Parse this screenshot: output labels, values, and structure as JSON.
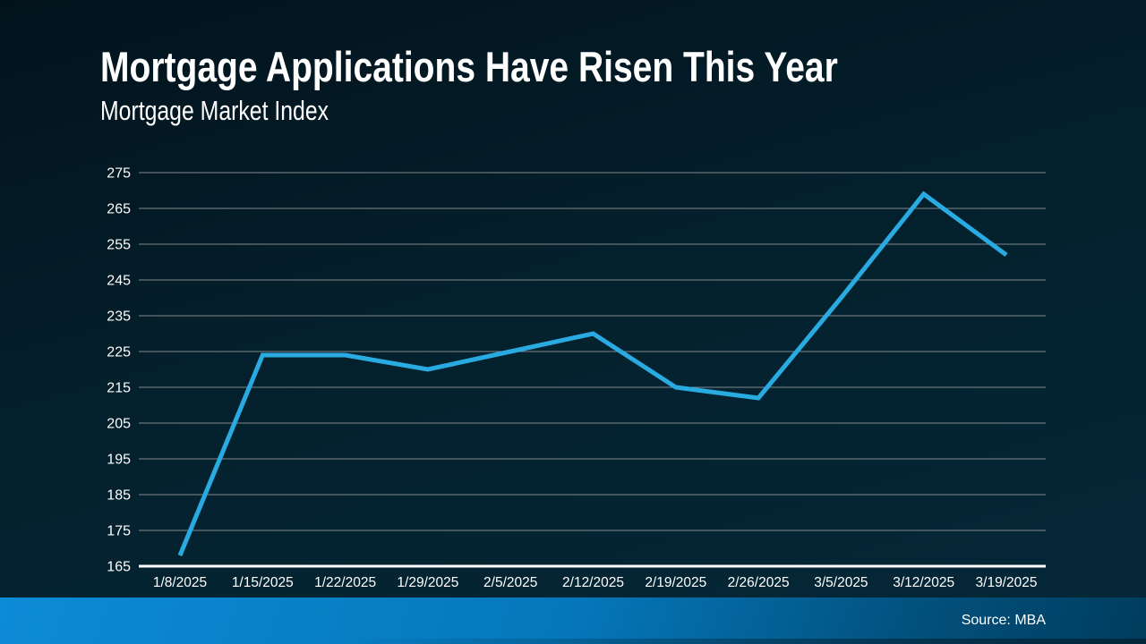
{
  "slide": {
    "title": "Mortgage Applications Have Risen This Year",
    "subtitle": "Mortgage Market Index",
    "source": "Source: MBA"
  },
  "colors": {
    "line": "#29abe2",
    "gridline": "#7f898e",
    "axis_line": "#ffffff",
    "tick_text": "#ffffff",
    "background_top": "#02131c",
    "background_bottom": "#052839",
    "footer_left": "#0c8bd6",
    "footer_right": "#003d5e"
  },
  "chart_data": {
    "type": "line",
    "title": "Mortgage Applications Have Risen This Year",
    "subtitle": "Mortgage Market Index",
    "categories": [
      "1/8/2025",
      "1/15/2025",
      "1/22/2025",
      "1/29/2025",
      "2/5/2025",
      "2/12/2025",
      "2/19/2025",
      "2/26/2025",
      "3/5/2025",
      "3/12/2025",
      "3/19/2025"
    ],
    "series": [
      {
        "name": "Mortgage Market Index",
        "values": [
          168,
          224,
          224,
          220,
          225,
          230,
          215,
          212,
          240,
          269,
          252
        ]
      }
    ],
    "yticks": [
      165,
      175,
      185,
      195,
      205,
      215,
      225,
      235,
      245,
      255,
      265,
      275
    ],
    "ylim": [
      165,
      275
    ],
    "xlabel": "",
    "ylabel": "",
    "grid": "horizontal",
    "legend": "none",
    "source": "Source: MBA"
  }
}
